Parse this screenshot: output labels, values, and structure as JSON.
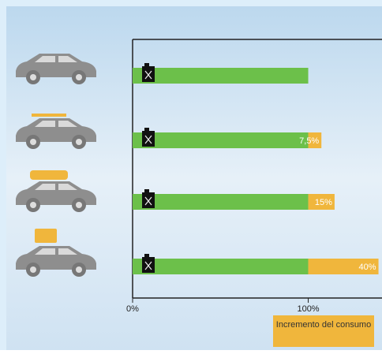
{
  "chart_data": {
    "type": "bar",
    "orientation": "horizontal",
    "stacked": true,
    "categories": [
      null,
      null,
      null,
      null
    ],
    "series": [
      {
        "color": "#6cc04a",
        "values": [
          100,
          100,
          100,
          100
        ]
      },
      {
        "color": "#f0b63c",
        "values": [
          0,
          7.5,
          15,
          40
        ],
        "value_labels": [
          null,
          "7,5%",
          "15%",
          "40%"
        ]
      }
    ],
    "xlim": [
      0,
      142
    ],
    "xticks": [
      {
        "value": 0,
        "label": "0%"
      },
      {
        "value": 100,
        "label": "100%"
      }
    ],
    "annotation": "Incremento del consumo"
  }
}
